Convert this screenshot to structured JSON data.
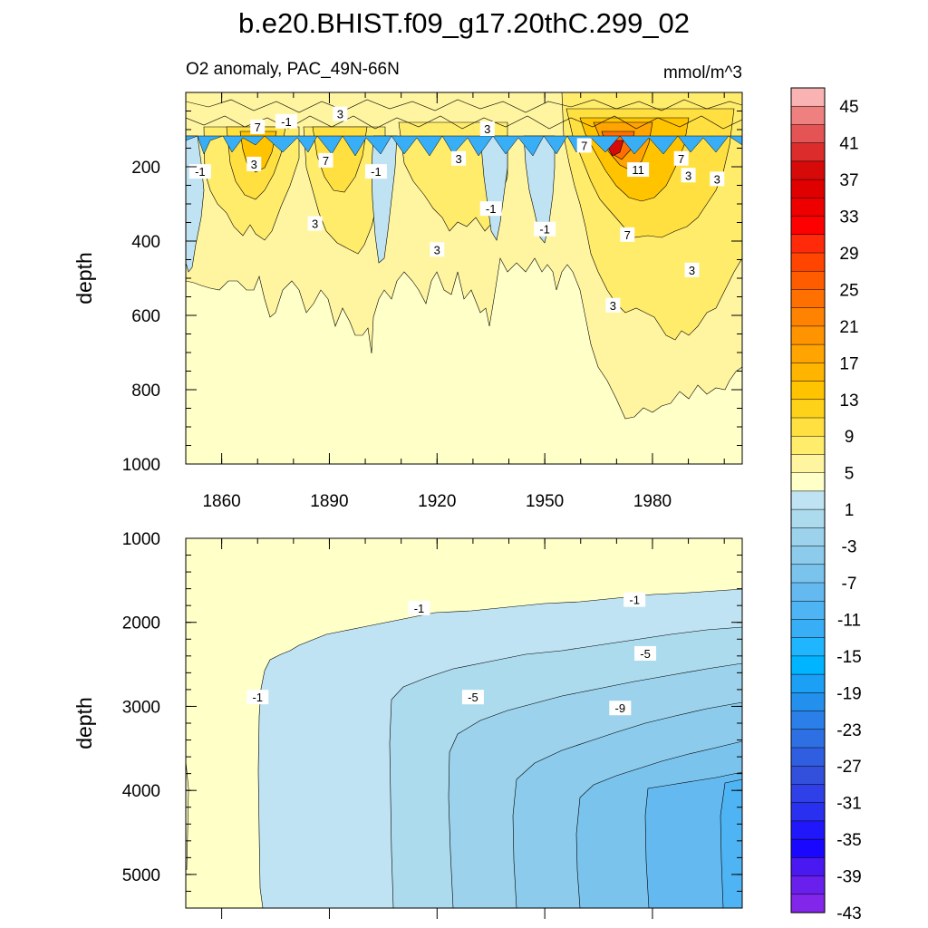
{
  "chart_data": [
    {
      "type": "contour",
      "title": "b.e20.BHIST.f09_g17.20thC.299_02",
      "subtitle_left": "O2 anomaly, PAC_49N-66N",
      "subtitle_right": "mmol/m^3",
      "ylabel": "depth",
      "xlim": [
        1850,
        2005
      ],
      "ylim": [
        1000,
        0
      ],
      "xticks": [
        1860,
        1890,
        1920,
        1950,
        1980
      ],
      "xtick_labels": [
        "1860",
        "1890",
        "1920",
        "1950",
        "1980"
      ],
      "yticks": [
        200,
        400,
        600,
        800,
        1000
      ],
      "ytick_labels": [
        "200",
        "400",
        "600",
        "800",
        "1000"
      ],
      "contour_labels": [
        {
          "x": 1870,
          "y": 95,
          "text": "7"
        },
        {
          "x": 1878,
          "y": 80,
          "text": "-1"
        },
        {
          "x": 1893,
          "y": 60,
          "text": "3"
        },
        {
          "x": 1854,
          "y": 215,
          "text": "-1"
        },
        {
          "x": 1869,
          "y": 195,
          "text": "3"
        },
        {
          "x": 1889,
          "y": 185,
          "text": "7"
        },
        {
          "x": 1903,
          "y": 215,
          "text": "-1"
        },
        {
          "x": 1926,
          "y": 180,
          "text": "3"
        },
        {
          "x": 1934,
          "y": 100,
          "text": "3"
        },
        {
          "x": 1886,
          "y": 355,
          "text": "3"
        },
        {
          "x": 1935,
          "y": 315,
          "text": "-1"
        },
        {
          "x": 1950,
          "y": 370,
          "text": "-1"
        },
        {
          "x": 1920,
          "y": 425,
          "text": "3"
        },
        {
          "x": 1961,
          "y": 145,
          "text": "7"
        },
        {
          "x": 1976,
          "y": 210,
          "text": "11"
        },
        {
          "x": 1988,
          "y": 180,
          "text": "7"
        },
        {
          "x": 1990,
          "y": 225,
          "text": "3"
        },
        {
          "x": 1998,
          "y": 235,
          "text": "3"
        },
        {
          "x": 1973,
          "y": 385,
          "text": "7"
        },
        {
          "x": 1991,
          "y": 480,
          "text": "3"
        },
        {
          "x": 1969,
          "y": 575,
          "text": "3"
        }
      ],
      "levels_note": "filled contours, anomaly values -45 to 47"
    },
    {
      "type": "contour",
      "ylabel": "depth",
      "xlim": [
        1850,
        2005
      ],
      "ylim": [
        5400,
        1000
      ],
      "yticks": [
        1000,
        2000,
        3000,
        4000,
        5000
      ],
      "ytick_labels": [
        "1000",
        "2000",
        "3000",
        "4000",
        "5000"
      ],
      "contour_labels": [
        {
          "x": 1870,
          "y": 2900,
          "text": "-1"
        },
        {
          "x": 1915,
          "y": 1840,
          "text": "-1"
        },
        {
          "x": 1975,
          "y": 1740,
          "text": "-1"
        },
        {
          "x": 1978,
          "y": 2380,
          "text": "-5"
        },
        {
          "x": 1930,
          "y": 2900,
          "text": "-5"
        },
        {
          "x": 1971,
          "y": 3030,
          "text": "-9"
        }
      ]
    },
    {
      "type": "colorbar",
      "units": "mmol/m^3",
      "labels": [
        "45",
        "41",
        "37",
        "33",
        "29",
        "25",
        "21",
        "17",
        "13",
        "9",
        "5",
        "1",
        "-3",
        "-7",
        "-11",
        "-15",
        "-19",
        "-23",
        "-27",
        "-31",
        "-35",
        "-39",
        "-43"
      ],
      "colors": [
        "#f9b3b3",
        "#ee8080",
        "#e55454",
        "#dc2c2c",
        "#d70a0a",
        "#e00000",
        "#ee0000",
        "#ff0000",
        "#ff2a0a",
        "#ff4500",
        "#ff5c00",
        "#ff7000",
        "#ff8200",
        "#ff9400",
        "#ffa400",
        "#ffb400",
        "#ffc300",
        "#ffd21a",
        "#ffe040",
        "#ffec6b",
        "#fff5a0",
        "#ffffc8",
        "#bfe3f2",
        "#addbee",
        "#9cd2ec",
        "#8ccbeb",
        "#7ac3ed",
        "#64baf0",
        "#4fb4f3",
        "#38aef6",
        "#20b6ff",
        "#00b4ff",
        "#1ca0f5",
        "#2490ee",
        "#2a80e8",
        "#2e70e4",
        "#305ee0",
        "#3250dc",
        "#3040e8",
        "#2a30f0",
        "#2018fa",
        "#1a08fe",
        "#4a18f0",
        "#6a20ec",
        "#8226ea"
      ]
    }
  ]
}
